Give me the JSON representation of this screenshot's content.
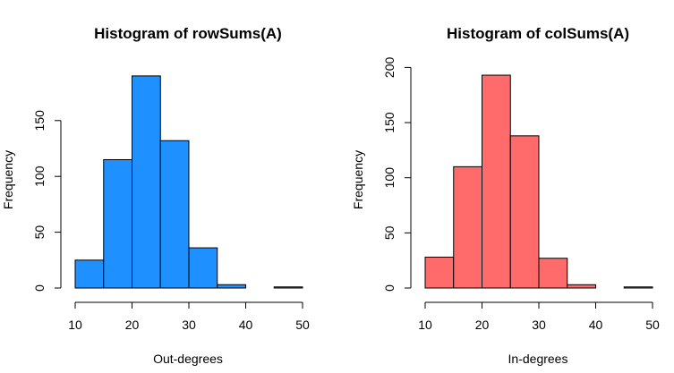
{
  "chart_data": [
    {
      "type": "bar",
      "title": "Histogram of rowSums(A)",
      "xlabel": "Out-degrees",
      "ylabel": "Frequency",
      "bins": [
        [
          10,
          15
        ],
        [
          15,
          20
        ],
        [
          20,
          25
        ],
        [
          25,
          30
        ],
        [
          30,
          35
        ],
        [
          35,
          40
        ],
        [
          40,
          45
        ],
        [
          45,
          50
        ]
      ],
      "values": [
        25,
        115,
        190,
        132,
        36,
        3,
        0,
        1
      ],
      "xticks": [
        "10",
        "20",
        "30",
        "40",
        "50"
      ],
      "yticks": [
        "0",
        "50",
        "100",
        "150"
      ],
      "xlim": [
        10,
        50
      ],
      "ylim": [
        0,
        190
      ],
      "fill": "#1e90ff",
      "grid": false
    },
    {
      "type": "bar",
      "title": "Histogram of colSums(A)",
      "xlabel": "In-degrees",
      "ylabel": "Frequency",
      "bins": [
        [
          10,
          15
        ],
        [
          15,
          20
        ],
        [
          20,
          25
        ],
        [
          25,
          30
        ],
        [
          30,
          35
        ],
        [
          35,
          40
        ],
        [
          40,
          45
        ],
        [
          45,
          50
        ]
      ],
      "values": [
        28,
        110,
        193,
        138,
        27,
        3,
        0,
        1
      ],
      "xticks": [
        "10",
        "20",
        "30",
        "40",
        "50"
      ],
      "yticks": [
        "0",
        "50",
        "100",
        "150",
        "200"
      ],
      "xlim": [
        10,
        50
      ],
      "ylim": [
        0,
        200
      ],
      "fill": "#ff6a6a",
      "grid": false
    }
  ]
}
